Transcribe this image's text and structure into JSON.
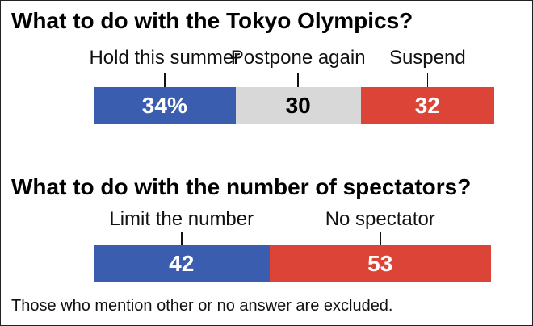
{
  "chart_data": [
    {
      "type": "bar",
      "orientation": "horizontal-stacked",
      "title": "What to do with the Tokyo Olympics?",
      "categories": [
        "Hold this summer",
        "Postpone again",
        "Suspend"
      ],
      "values": [
        34,
        30,
        32
      ],
      "value_labels": [
        "34%",
        "30",
        "32"
      ],
      "colors": [
        "#3a5db0",
        "#d8d8d8",
        "#db4437"
      ],
      "label_colors": [
        "#ffffff",
        "#000000",
        "#ffffff"
      ]
    },
    {
      "type": "bar",
      "orientation": "horizontal-stacked",
      "title": "What to do with the number of spectators?",
      "categories": [
        "Limit the number",
        "No spectator"
      ],
      "values": [
        42,
        53
      ],
      "value_labels": [
        "42",
        "53"
      ],
      "colors": [
        "#3a5db0",
        "#db4437"
      ],
      "label_colors": [
        "#ffffff",
        "#ffffff"
      ]
    }
  ],
  "footnote": "Those who mention other or no answer are excluded."
}
